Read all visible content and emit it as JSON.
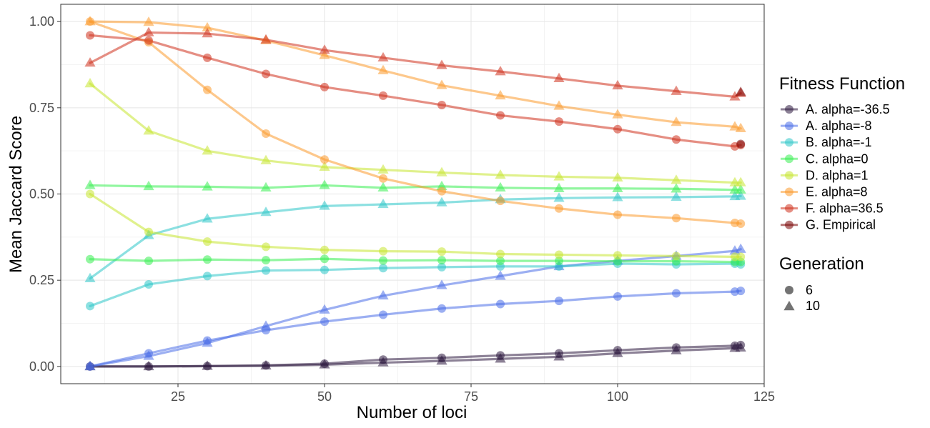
{
  "chart_data": {
    "type": "line",
    "xlabel": "Number of loci",
    "ylabel": "Mean Jaccard Score",
    "xlim": [
      5,
      125
    ],
    "ylim": [
      -0.05,
      1.05
    ],
    "x_ticks": [
      25,
      50,
      75,
      100,
      125
    ],
    "y_ticks": [
      0.0,
      0.25,
      0.5,
      0.75,
      1.0
    ],
    "x_tick_labels": [
      "25",
      "50",
      "75",
      "100",
      "125"
    ],
    "y_tick_labels": [
      "0.00",
      "0.25",
      "0.50",
      "0.75",
      "1.00"
    ],
    "grid": true,
    "legend_position": "right",
    "color_legend": {
      "title": "Fitness Function",
      "entries": [
        {
          "label": "A. alpha=-36.5",
          "color": "#2d1a3f"
        },
        {
          "label": "A. alpha=-8",
          "color": "#4a6ee8"
        },
        {
          "label": "B. alpha=-1",
          "color": "#2ec6c9"
        },
        {
          "label": "C. alpha=0",
          "color": "#39ef52"
        },
        {
          "label": "D. alpha=1",
          "color": "#c7e630"
        },
        {
          "label": "E. alpha=8",
          "color": "#fb9a2e"
        },
        {
          "label": "F. alpha=36.5",
          "color": "#d0311e"
        },
        {
          "label": "G. Empirical",
          "color": "#7a0403"
        }
      ]
    },
    "shape_legend": {
      "title": "Generation",
      "entries": [
        {
          "label": "6",
          "shape": "circle"
        },
        {
          "label": "10",
          "shape": "triangle"
        }
      ]
    },
    "series": [
      {
        "name": "A. alpha=-36.5",
        "generation": "6",
        "color": "#2d1a3f",
        "shape": "circle",
        "x": [
          10,
          20,
          30,
          40,
          50,
          60,
          70,
          80,
          90,
          100,
          110,
          120,
          121
        ],
        "y": [
          0.0,
          0.0,
          0.001,
          0.003,
          0.008,
          0.02,
          0.025,
          0.032,
          0.038,
          0.047,
          0.055,
          0.06,
          0.062
        ]
      },
      {
        "name": "A. alpha=-36.5",
        "generation": "10",
        "color": "#2d1a3f",
        "shape": "triangle",
        "x": [
          10,
          20,
          30,
          40,
          50,
          60,
          70,
          80,
          90,
          100,
          110,
          120,
          121
        ],
        "y": [
          0.0,
          0.0,
          0.001,
          0.002,
          0.005,
          0.011,
          0.016,
          0.022,
          0.028,
          0.038,
          0.046,
          0.053,
          0.054
        ]
      },
      {
        "name": "A. alpha=-8",
        "generation": "6",
        "color": "#4a6ee8",
        "shape": "circle",
        "x": [
          10,
          20,
          30,
          40,
          50,
          60,
          70,
          80,
          90,
          100,
          110,
          120,
          121
        ],
        "y": [
          0.0,
          0.038,
          0.075,
          0.105,
          0.13,
          0.15,
          0.168,
          0.181,
          0.19,
          0.203,
          0.212,
          0.217,
          0.219
        ]
      },
      {
        "name": "A. alpha=-8",
        "generation": "10",
        "color": "#4a6ee8",
        "shape": "triangle",
        "x": [
          10,
          20,
          30,
          40,
          50,
          60,
          70,
          80,
          90,
          100,
          110,
          120,
          121
        ],
        "y": [
          0.0,
          0.03,
          0.068,
          0.117,
          0.164,
          0.205,
          0.235,
          0.262,
          0.29,
          0.306,
          0.32,
          0.335,
          0.34
        ]
      },
      {
        "name": "B. alpha=-1",
        "generation": "6",
        "color": "#2ec6c9",
        "shape": "circle",
        "x": [
          10,
          20,
          30,
          40,
          50,
          60,
          70,
          80,
          90,
          100,
          110,
          120,
          121
        ],
        "y": [
          0.175,
          0.238,
          0.262,
          0.278,
          0.28,
          0.285,
          0.288,
          0.29,
          0.29,
          0.298,
          0.296,
          0.298,
          0.296
        ]
      },
      {
        "name": "B. alpha=-1",
        "generation": "10",
        "color": "#2ec6c9",
        "shape": "triangle",
        "x": [
          10,
          20,
          30,
          40,
          50,
          60,
          70,
          80,
          90,
          100,
          110,
          120,
          121
        ],
        "y": [
          0.255,
          0.38,
          0.428,
          0.447,
          0.465,
          0.47,
          0.475,
          0.484,
          0.488,
          0.49,
          0.491,
          0.493,
          0.494
        ]
      },
      {
        "name": "C. alpha=0",
        "generation": "6",
        "color": "#39ef52",
        "shape": "circle",
        "x": [
          10,
          20,
          30,
          40,
          50,
          60,
          70,
          80,
          90,
          100,
          110,
          120,
          121
        ],
        "y": [
          0.311,
          0.306,
          0.31,
          0.308,
          0.312,
          0.307,
          0.308,
          0.306,
          0.306,
          0.305,
          0.305,
          0.303,
          0.303
        ]
      },
      {
        "name": "C. alpha=0",
        "generation": "10",
        "color": "#39ef52",
        "shape": "triangle",
        "x": [
          10,
          20,
          30,
          40,
          50,
          60,
          70,
          80,
          90,
          100,
          110,
          120,
          121
        ],
        "y": [
          0.525,
          0.522,
          0.521,
          0.518,
          0.525,
          0.518,
          0.522,
          0.518,
          0.516,
          0.516,
          0.515,
          0.512,
          0.512
        ]
      },
      {
        "name": "D. alpha=1",
        "generation": "6",
        "color": "#c7e630",
        "shape": "circle",
        "x": [
          10,
          20,
          30,
          40,
          50,
          60,
          70,
          80,
          90,
          100,
          110,
          120,
          121
        ],
        "y": [
          0.5,
          0.39,
          0.362,
          0.347,
          0.338,
          0.334,
          0.333,
          0.326,
          0.324,
          0.322,
          0.32,
          0.318,
          0.318
        ]
      },
      {
        "name": "D. alpha=1",
        "generation": "10",
        "color": "#c7e630",
        "shape": "triangle",
        "x": [
          10,
          20,
          30,
          40,
          50,
          60,
          70,
          80,
          90,
          100,
          110,
          120,
          121
        ],
        "y": [
          0.82,
          0.683,
          0.625,
          0.597,
          0.578,
          0.57,
          0.562,
          0.555,
          0.55,
          0.547,
          0.54,
          0.533,
          0.533
        ]
      },
      {
        "name": "E. alpha=8",
        "generation": "6",
        "color": "#fb9a2e",
        "shape": "circle",
        "x": [
          10,
          20,
          30,
          40,
          50,
          60,
          70,
          80,
          90,
          100,
          110,
          120,
          121
        ],
        "y": [
          1.0,
          0.94,
          0.802,
          0.675,
          0.6,
          0.545,
          0.508,
          0.48,
          0.458,
          0.44,
          0.43,
          0.416,
          0.414
        ]
      },
      {
        "name": "E. alpha=8",
        "generation": "10",
        "color": "#fb9a2e",
        "shape": "triangle",
        "x": [
          10,
          20,
          30,
          40,
          50,
          60,
          70,
          80,
          90,
          100,
          110,
          120,
          121
        ],
        "y": [
          1.0,
          0.998,
          0.982,
          0.945,
          0.902,
          0.858,
          0.815,
          0.785,
          0.755,
          0.73,
          0.708,
          0.695,
          0.69
        ]
      },
      {
        "name": "F. alpha=36.5",
        "generation": "6",
        "color": "#d0311e",
        "shape": "circle",
        "x": [
          10,
          20,
          30,
          40,
          50,
          60,
          70,
          80,
          90,
          100,
          110,
          120,
          121
        ],
        "y": [
          0.96,
          0.945,
          0.895,
          0.848,
          0.81,
          0.785,
          0.758,
          0.728,
          0.71,
          0.688,
          0.658,
          0.638,
          0.642
        ]
      },
      {
        "name": "F. alpha=36.5",
        "generation": "10",
        "color": "#d0311e",
        "shape": "triangle",
        "x": [
          10,
          20,
          30,
          40,
          50,
          60,
          70,
          80,
          90,
          100,
          110,
          120,
          121
        ],
        "y": [
          0.88,
          0.968,
          0.965,
          0.947,
          0.917,
          0.895,
          0.873,
          0.855,
          0.835,
          0.814,
          0.798,
          0.782,
          0.792
        ]
      },
      {
        "name": "G. Empirical",
        "generation": "6",
        "color": "#7a0403",
        "shape": "circle",
        "x": [
          121
        ],
        "y": [
          0.645
        ]
      },
      {
        "name": "G. Empirical",
        "generation": "10",
        "color": "#7a0403",
        "shape": "triangle",
        "x": [
          121
        ],
        "y": [
          0.795
        ]
      }
    ]
  }
}
